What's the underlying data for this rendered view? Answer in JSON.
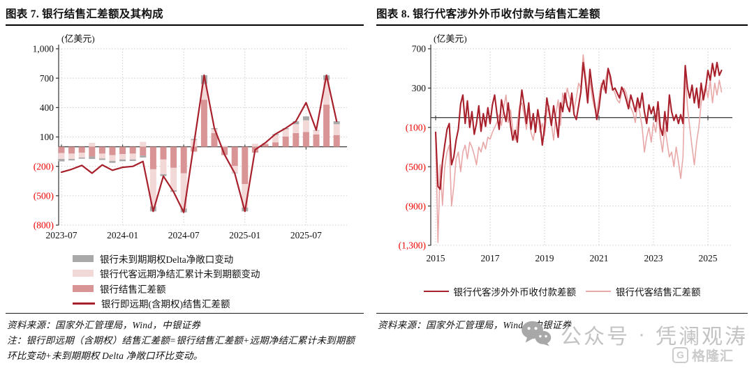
{
  "chart_data": [
    {
      "id": "figure7",
      "type": "bar",
      "title": "图表 7. 银行结售汇差额及其构成",
      "unit": "(亿美元)",
      "source": "资料来源：国家外汇管理局，Wind，中银证券",
      "note": "注：银行即远期（含期权）结售汇差额=银行结售汇差额+远期净结汇累计未到期额环比变动+未到期期权 Delta 净敞口环比变动。",
      "categories": [
        "2023-07",
        "2023-08",
        "2023-09",
        "2023-10",
        "2023-11",
        "2023-12",
        "2024-01",
        "2024-02",
        "2024-03",
        "2024-04",
        "2024-05",
        "2024-06",
        "2024-07",
        "2024-08",
        "2024-09",
        "2024-10",
        "2024-11",
        "2024-12",
        "2025-01",
        "2025-02",
        "2025-03",
        "2025-04",
        "2025-05",
        "2025-06",
        "2025-07",
        "2025-08",
        "2025-09",
        "2025-10"
      ],
      "x_tick_labels": [
        "2023-07",
        "2024-01",
        "2024-07",
        "2025-01",
        "2025-07"
      ],
      "x_tick_indices": [
        0,
        6,
        12,
        18,
        24
      ],
      "ylim": [
        -800,
        1000
      ],
      "y_ticks": [
        1000,
        700,
        400,
        100,
        -200,
        -500,
        -800
      ],
      "y_tick_labels": [
        "1,000",
        "700",
        "400",
        "100",
        "(200)",
        "(500)",
        "(800)"
      ],
      "grid": true,
      "legend_position": "bottom-left",
      "series": [
        {
          "name": "银行未到期期权Delta净敞口变动",
          "type": "bar",
          "color": "#a9a9a9",
          "values": [
            -25,
            -15,
            -12,
            -25,
            -15,
            -20,
            -18,
            -15,
            -20,
            -50,
            -20,
            -15,
            -40,
            10,
            90,
            10,
            0,
            -5,
            -40,
            0,
            0,
            10,
            10,
            30,
            40,
            5,
            50,
            30
          ]
        },
        {
          "name": "银行代客远期净结汇累计未到期额变动",
          "type": "bar",
          "color": "#f3d8d8",
          "values": [
            -60,
            -55,
            -50,
            40,
            -50,
            -60,
            -55,
            -60,
            50,
            -380,
            -150,
            -230,
            -360,
            70,
            160,
            40,
            5,
            -70,
            -240,
            30,
            15,
            75,
            75,
            90,
            120,
            40,
            250,
            110
          ]
        },
        {
          "name": "银行结售汇差额",
          "type": "bar",
          "color": "#d99595",
          "values": [
            -65,
            -70,
            -60,
            -100,
            -70,
            -85,
            -75,
            -70,
            -90,
            -230,
            -130,
            -215,
            -270,
            -50,
            480,
            140,
            -85,
            -195,
            -380,
            -60,
            25,
            45,
            105,
            140,
            150,
            125,
            430,
            120
          ]
        },
        {
          "name": "银行即远期(含期权)结售汇差额",
          "type": "line",
          "color": "#a8202c",
          "width": 2.2,
          "values": [
            -260,
            -230,
            -190,
            -270,
            -185,
            -240,
            -210,
            -200,
            -150,
            -660,
            -300,
            -460,
            -670,
            30,
            730,
            190,
            -80,
            -270,
            -660,
            -30,
            40,
            130,
            190,
            260,
            450,
            170,
            730,
            260
          ]
        }
      ]
    },
    {
      "id": "figure8",
      "type": "line",
      "title": "图表 8. 银行代客涉外外币收付款与结售汇差额",
      "unit": "(亿美元)",
      "source": "资料来源：国家外汇管理局，Wind，中银证券",
      "x_start": "2015-01",
      "x_frequency": "monthly",
      "x_tick_labels": [
        "2015",
        "2017",
        "2019",
        "2021",
        "2023",
        "2025"
      ],
      "x_tick_indices": [
        0,
        24,
        48,
        72,
        96,
        120
      ],
      "ylim": [
        -1300,
        700
      ],
      "y_ticks": [
        700,
        300,
        -100,
        -500,
        -900,
        -1300
      ],
      "y_tick_labels": [
        "700",
        "300",
        "(100)",
        "(500)",
        "(900)",
        "(1,300)"
      ],
      "grid": true,
      "legend_position": "bottom-center",
      "series": [
        {
          "name": "银行代客涉外外币收付款差额",
          "type": "line",
          "color": "#a8202c",
          "width": 2.1,
          "values": [
            -150,
            -700,
            -730,
            -450,
            -280,
            -120,
            -60,
            -480,
            -400,
            -230,
            -120,
            140,
            230,
            -60,
            170,
            -100,
            60,
            -170,
            -60,
            120,
            -140,
            40,
            -90,
            100,
            -60,
            130,
            230,
            40,
            -120,
            180,
            60,
            -40,
            150,
            -80,
            -230,
            -130,
            -250,
            60,
            280,
            120,
            -60,
            150,
            -120,
            40,
            -150,
            80,
            -60,
            -280,
            -100,
            200,
            60,
            -80,
            120,
            -40,
            -200,
            150,
            60,
            250,
            120,
            60,
            250,
            30,
            -20,
            120,
            260,
            560,
            380,
            150,
            490,
            300,
            150,
            -20,
            100,
            300,
            380,
            250,
            500,
            420,
            280,
            300,
            250,
            200,
            310,
            260,
            180,
            90,
            230,
            150,
            60,
            200,
            100,
            250,
            60,
            -60,
            130,
            40,
            110,
            -40,
            160,
            -100,
            -180,
            60,
            -140,
            230,
            60,
            -30,
            30,
            -60,
            30,
            -60,
            530,
            300,
            200,
            330,
            150,
            300,
            100,
            350,
            180,
            300,
            480,
            380,
            550,
            420,
            560,
            430,
            480
          ]
        },
        {
          "name": "银行代客结售汇差额",
          "type": "line",
          "color": "#e9a8a8",
          "width": 1.6,
          "values": [
            -170,
            -1270,
            -480,
            -890,
            -500,
            -350,
            -280,
            -900,
            -700,
            -420,
            -350,
            -550,
            -350,
            -280,
            -420,
            -250,
            -300,
            -380,
            -480,
            -300,
            -350,
            -250,
            -320,
            -200,
            -220,
            -150,
            -100,
            -50,
            30,
            -80,
            100,
            230,
            -50,
            80,
            -120,
            -230,
            -60,
            120,
            150,
            30,
            -120,
            80,
            -150,
            -230,
            -80,
            40,
            -150,
            -60,
            -180,
            60,
            120,
            -60,
            -230,
            40,
            180,
            -80,
            250,
            150,
            300,
            200,
            150,
            80,
            200,
            350,
            300,
            640,
            450,
            250,
            380,
            200,
            100,
            50,
            200,
            350,
            280,
            400,
            500,
            350,
            300,
            250,
            180,
            150,
            250,
            300,
            250,
            150,
            100,
            50,
            -50,
            150,
            50,
            -100,
            -350,
            -200,
            -100,
            -250,
            -50,
            -150,
            50,
            -200,
            -350,
            -100,
            -250,
            -400,
            -350,
            -500,
            -300,
            -450,
            -620,
            -400,
            430,
            100,
            -100,
            -300,
            -480,
            -250,
            -100,
            150,
            250,
            330,
            200,
            380,
            150,
            350,
            230,
            380,
            260
          ]
        }
      ]
    }
  ],
  "watermark": {
    "account_label": "公众号",
    "separator": "·",
    "account_name": "凭澜观涛",
    "logo_letter": "G",
    "logo_text": "格隆汇"
  }
}
